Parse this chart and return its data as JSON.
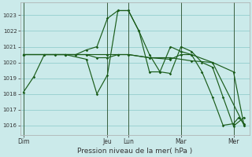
{
  "background_color": "#cbeaea",
  "grid_color": "#88c8c8",
  "line_color": "#1a5c1a",
  "title": "Pression niveau de la mer( hPa )",
  "ylim": [
    1015.4,
    1023.8
  ],
  "yticks": [
    1016,
    1017,
    1018,
    1019,
    1020,
    1021,
    1022,
    1023
  ],
  "day_labels": [
    "Dim",
    "Jeu",
    "Lun",
    "Mar",
    "Mer"
  ],
  "day_x": [
    0,
    8,
    10,
    15,
    20
  ],
  "xlim": [
    -0.3,
    21.5
  ],
  "series": [
    [
      [
        0,
        1018.1
      ],
      [
        1,
        1019.1
      ],
      [
        2,
        1020.5
      ],
      [
        3,
        1020.5
      ],
      [
        4,
        1020.5
      ],
      [
        5,
        1020.5
      ],
      [
        6,
        1020.8
      ],
      [
        7,
        1021.0
      ],
      [
        8,
        1022.8
      ],
      [
        9,
        1023.3
      ],
      [
        10,
        1023.3
      ],
      [
        11,
        1022.0
      ],
      [
        12,
        1020.5
      ],
      [
        13,
        1019.4
      ],
      [
        14,
        1019.3
      ],
      [
        15,
        1021.0
      ],
      [
        16,
        1020.7
      ],
      [
        17,
        1020.0
      ],
      [
        18,
        1019.7
      ],
      [
        19,
        1017.8
      ],
      [
        20,
        1015.95
      ],
      [
        21,
        1016.5
      ]
    ],
    [
      [
        0,
        1020.5
      ],
      [
        2,
        1020.5
      ],
      [
        4,
        1020.5
      ],
      [
        6,
        1020.5
      ],
      [
        8,
        1020.5
      ],
      [
        9,
        1020.5
      ],
      [
        10,
        1020.5
      ],
      [
        12,
        1020.3
      ],
      [
        14,
        1020.2
      ],
      [
        15,
        1020.5
      ],
      [
        16,
        1020.5
      ],
      [
        18,
        1020.0
      ],
      [
        20,
        1019.4
      ],
      [
        21,
        1016.0
      ]
    ],
    [
      [
        0,
        1020.5
      ],
      [
        3,
        1020.5
      ],
      [
        4,
        1020.5
      ],
      [
        5,
        1020.5
      ],
      [
        6,
        1020.5
      ],
      [
        7,
        1020.3
      ],
      [
        8,
        1020.3
      ],
      [
        9,
        1020.5
      ],
      [
        10,
        1020.5
      ],
      [
        12,
        1020.3
      ],
      [
        14,
        1020.3
      ],
      [
        16,
        1020.1
      ],
      [
        18,
        1020.0
      ],
      [
        21,
        1016.0
      ]
    ],
    [
      [
        0,
        1020.5
      ],
      [
        4,
        1020.5
      ],
      [
        6,
        1020.2
      ],
      [
        7,
        1018.0
      ],
      [
        8,
        1019.2
      ],
      [
        9,
        1023.3
      ],
      [
        10,
        1023.3
      ],
      [
        11,
        1022.0
      ],
      [
        12,
        1019.4
      ],
      [
        13,
        1019.4
      ],
      [
        14,
        1021.0
      ],
      [
        15,
        1020.7
      ],
      [
        16,
        1020.5
      ],
      [
        17,
        1019.4
      ],
      [
        18,
        1017.8
      ],
      [
        19,
        1016.0
      ],
      [
        20,
        1016.1
      ],
      [
        20.5,
        1016.5
      ],
      [
        21,
        1016.1
      ]
    ]
  ]
}
